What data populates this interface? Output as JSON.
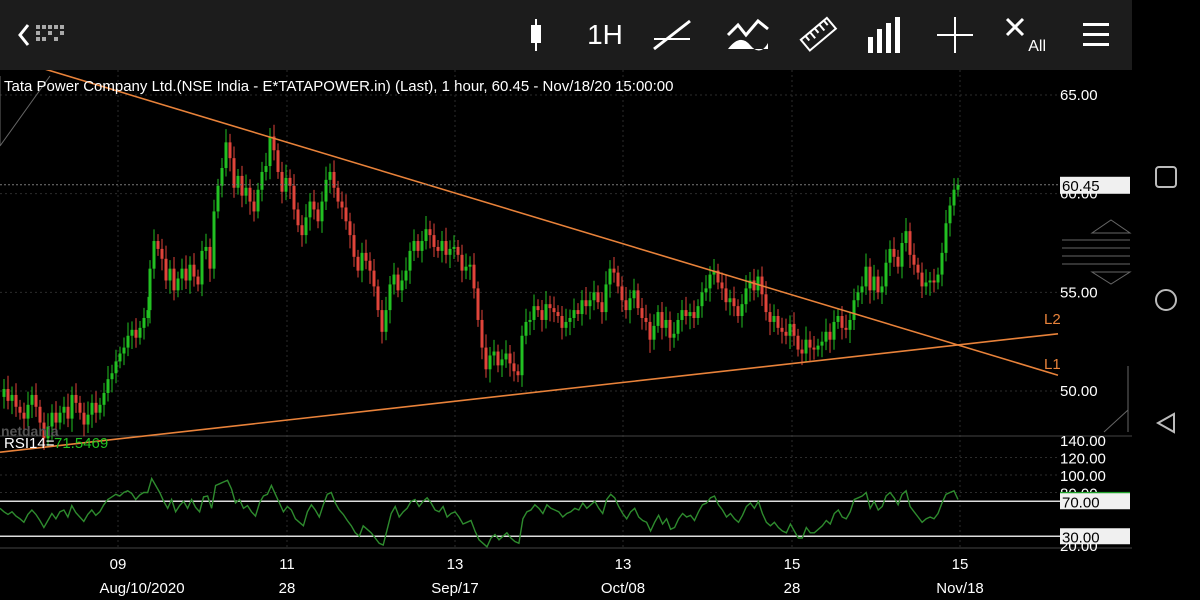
{
  "toolbar": {
    "back_icon": "chevron-left-icon",
    "interval": "1H",
    "clear_label": "All",
    "buttons": [
      "candle-style-icon",
      "interval",
      "trendline-icon",
      "indicator-icon",
      "ruler-icon",
      "volume-bars-icon",
      "crosshair-icon",
      "clear-all-icon",
      "menu-icon"
    ]
  },
  "navbar": [
    "recent-apps-icon",
    "home-icon",
    "back-icon"
  ],
  "chart": {
    "header": "Tata Power Company Ltd.(NSE India - E*TATAPOWER.in) (Last),  1 hour, 60.45 - Nov/18/20 15:00:00",
    "watermark": "netdania",
    "price_ticks": [
      "65.00",
      "60.00",
      "55.00",
      "50.00"
    ],
    "last_price": "60.45",
    "rsi_label": "RSI14=",
    "rsi_value": "71.5469",
    "rsi_ticks": [
      "140.00",
      "120.00",
      "100.00",
      "80.00",
      "70.00",
      "30.00",
      "20.00"
    ],
    "x_labels_top": [
      "09",
      "11",
      "13",
      "13",
      "15",
      "15"
    ],
    "x_labels_bottom": [
      "Aug/10/2020",
      "28",
      "Sep/17",
      "Oct/08",
      "28",
      "Nov/18"
    ],
    "line_labels": [
      "L2",
      "L1"
    ],
    "colors": {
      "up": "#22c022",
      "down": "#e0443a",
      "trend": "#e8823a",
      "rsi": "#2e8b2e",
      "last": "#1fa02a"
    }
  },
  "chart_data": {
    "type": "candlestick",
    "title": "Tata Power Company Ltd.(NSE India - E*TATAPOWER.in) (Last),  1 hour, 60.45 - Nov/18/20 15:00:00",
    "ylim": [
      44,
      67
    ],
    "last": 60.45,
    "close_path": [
      [
        0,
        49.7
      ],
      [
        4,
        50.1
      ],
      [
        8,
        49.5
      ],
      [
        12,
        49.8
      ],
      [
        16,
        49.2
      ],
      [
        20,
        48.9
      ],
      [
        24,
        48.6
      ],
      [
        28,
        49.3
      ],
      [
        32,
        49.8
      ],
      [
        36,
        49.2
      ],
      [
        40,
        48.4
      ],
      [
        44,
        47.6
      ],
      [
        48,
        48.2
      ],
      [
        52,
        48.9
      ],
      [
        56,
        48.4
      ],
      [
        60,
        48.9
      ],
      [
        64,
        49.2
      ],
      [
        68,
        48.6
      ],
      [
        72,
        49.8
      ],
      [
        76,
        49.4
      ],
      [
        80,
        48.9
      ],
      [
        84,
        48.3
      ],
      [
        88,
        48.8
      ],
      [
        92,
        49.4
      ],
      [
        96,
        48.9
      ],
      [
        100,
        49.3
      ],
      [
        104,
        49.9
      ],
      [
        108,
        50.6
      ],
      [
        112,
        50.9
      ],
      [
        116,
        51.5
      ],
      [
        120,
        51.9
      ],
      [
        124,
        52.2
      ],
      [
        128,
        52.8
      ],
      [
        132,
        53.1
      ],
      [
        136,
        52.7
      ],
      [
        140,
        53.2
      ],
      [
        144,
        53.7
      ],
      [
        148,
        54.1
      ],
      [
        150,
        56.2
      ],
      [
        154,
        57.6
      ],
      [
        158,
        57.2
      ],
      [
        162,
        56.7
      ],
      [
        166,
        55.6
      ],
      [
        170,
        56.2
      ],
      [
        174,
        55.1
      ],
      [
        178,
        55.7
      ],
      [
        182,
        56.2
      ],
      [
        186,
        55.6
      ],
      [
        190,
        56.4
      ],
      [
        194,
        55.8
      ],
      [
        198,
        55.4
      ],
      [
        202,
        57.1
      ],
      [
        206,
        57.3
      ],
      [
        210,
        56.2
      ],
      [
        214,
        59.1
      ],
      [
        218,
        60.4
      ],
      [
        222,
        61.3
      ],
      [
        226,
        62.6
      ],
      [
        230,
        61.8
      ],
      [
        234,
        60.3
      ],
      [
        238,
        60.9
      ],
      [
        242,
        59.9
      ],
      [
        246,
        60.3
      ],
      [
        250,
        59.6
      ],
      [
        254,
        59.1
      ],
      [
        258,
        60.2
      ],
      [
        262,
        61.1
      ],
      [
        266,
        61.4
      ],
      [
        270,
        62.9
      ],
      [
        274,
        62.2
      ],
      [
        278,
        61.1
      ],
      [
        282,
        60.1
      ],
      [
        286,
        60.8
      ],
      [
        290,
        60.4
      ],
      [
        294,
        59.2
      ],
      [
        298,
        58.4
      ],
      [
        302,
        57.9
      ],
      [
        306,
        58.8
      ],
      [
        310,
        59.6
      ],
      [
        314,
        59.2
      ],
      [
        318,
        58.6
      ],
      [
        322,
        59.6
      ],
      [
        326,
        60.7
      ],
      [
        330,
        61.1
      ],
      [
        334,
        60.3
      ],
      [
        338,
        59.6
      ],
      [
        342,
        59.3
      ],
      [
        346,
        58.6
      ],
      [
        350,
        57.9
      ],
      [
        354,
        56.8
      ],
      [
        358,
        56.1
      ],
      [
        362,
        57.0
      ],
      [
        366,
        56.6
      ],
      [
        370,
        56.1
      ],
      [
        374,
        55.3
      ],
      [
        378,
        54.1
      ],
      [
        382,
        53.0
      ],
      [
        386,
        54.1
      ],
      [
        390,
        55.4
      ],
      [
        394,
        55.9
      ],
      [
        398,
        55.1
      ],
      [
        402,
        55.6
      ],
      [
        406,
        56.1
      ],
      [
        410,
        57.1
      ],
      [
        414,
        57.6
      ],
      [
        418,
        57.1
      ],
      [
        422,
        57.6
      ],
      [
        426,
        58.2
      ],
      [
        430,
        57.9
      ],
      [
        434,
        57.3
      ],
      [
        438,
        57.1
      ],
      [
        442,
        57.6
      ],
      [
        446,
        56.9
      ],
      [
        450,
        57.2
      ],
      [
        454,
        57.3
      ],
      [
        458,
        56.9
      ],
      [
        462,
        56.1
      ],
      [
        466,
        56.3
      ],
      [
        470,
        56.4
      ],
      [
        474,
        55.2
      ],
      [
        478,
        53.6
      ],
      [
        482,
        52.2
      ],
      [
        486,
        51.1
      ],
      [
        490,
        51.8
      ],
      [
        494,
        52.0
      ],
      [
        498,
        51.3
      ],
      [
        502,
        51.6
      ],
      [
        506,
        51.9
      ],
      [
        510,
        51.4
      ],
      [
        514,
        51.0
      ],
      [
        518,
        50.8
      ],
      [
        522,
        52.8
      ],
      [
        526,
        53.5
      ],
      [
        530,
        53.6
      ],
      [
        534,
        54.3
      ],
      [
        538,
        54.1
      ],
      [
        542,
        53.6
      ],
      [
        546,
        54.4
      ],
      [
        550,
        54.2
      ],
      [
        554,
        54.0
      ],
      [
        558,
        53.8
      ],
      [
        562,
        53.2
      ],
      [
        566,
        53.5
      ],
      [
        570,
        53.7
      ],
      [
        574,
        54.1
      ],
      [
        578,
        53.9
      ],
      [
        582,
        54.6
      ],
      [
        586,
        54.3
      ],
      [
        590,
        54.6
      ],
      [
        594,
        55.0
      ],
      [
        598,
        54.5
      ],
      [
        602,
        54.0
      ],
      [
        606,
        55.4
      ],
      [
        610,
        56.2
      ],
      [
        614,
        56.0
      ],
      [
        618,
        55.3
      ],
      [
        622,
        54.6
      ],
      [
        626,
        54.1
      ],
      [
        630,
        54.7
      ],
      [
        634,
        55.1
      ],
      [
        638,
        54.2
      ],
      [
        642,
        53.7
      ],
      [
        646,
        53.5
      ],
      [
        650,
        52.6
      ],
      [
        654,
        53.3
      ],
      [
        658,
        54.0
      ],
      [
        662,
        53.2
      ],
      [
        666,
        53.6
      ],
      [
        670,
        52.7
      ],
      [
        674,
        52.9
      ],
      [
        678,
        53.6
      ],
      [
        682,
        54.1
      ],
      [
        686,
        53.8
      ],
      [
        690,
        54.0
      ],
      [
        694,
        53.7
      ],
      [
        698,
        54.3
      ],
      [
        702,
        55.0
      ],
      [
        706,
        55.2
      ],
      [
        710,
        55.9
      ],
      [
        714,
        56.1
      ],
      [
        718,
        55.5
      ],
      [
        722,
        55.2
      ],
      [
        726,
        54.5
      ],
      [
        730,
        54.7
      ],
      [
        734,
        54.3
      ],
      [
        738,
        53.8
      ],
      [
        742,
        54.4
      ],
      [
        746,
        55.2
      ],
      [
        750,
        55.6
      ],
      [
        754,
        55.1
      ],
      [
        758,
        55.8
      ],
      [
        762,
        54.9
      ],
      [
        766,
        54.0
      ],
      [
        770,
        53.5
      ],
      [
        774,
        53.8
      ],
      [
        778,
        53.2
      ],
      [
        782,
        53.0
      ],
      [
        786,
        52.8
      ],
      [
        790,
        53.4
      ],
      [
        794,
        52.8
      ],
      [
        798,
        52.1
      ],
      [
        802,
        51.9
      ],
      [
        806,
        52.6
      ],
      [
        810,
        52.2
      ],
      [
        814,
        52.1
      ],
      [
        818,
        52.3
      ],
      [
        822,
        52.5
      ],
      [
        826,
        53.0
      ],
      [
        830,
        52.6
      ],
      [
        834,
        53.5
      ],
      [
        838,
        53.8
      ],
      [
        842,
        53.2
      ],
      [
        846,
        53.1
      ],
      [
        850,
        53.6
      ],
      [
        854,
        54.6
      ],
      [
        858,
        55.0
      ],
      [
        862,
        55.3
      ],
      [
        866,
        56.3
      ],
      [
        870,
        55.1
      ],
      [
        874,
        55.8
      ],
      [
        878,
        55.0
      ],
      [
        882,
        55.3
      ],
      [
        886,
        56.5
      ],
      [
        890,
        57.2
      ],
      [
        894,
        56.8
      ],
      [
        898,
        56.3
      ],
      [
        902,
        57.5
      ],
      [
        906,
        58.1
      ],
      [
        910,
        56.9
      ],
      [
        914,
        56.4
      ],
      [
        918,
        56.0
      ],
      [
        922,
        55.3
      ],
      [
        926,
        55.5
      ],
      [
        930,
        55.6
      ],
      [
        934,
        55.5
      ],
      [
        938,
        55.9
      ],
      [
        942,
        57.0
      ],
      [
        946,
        58.5
      ],
      [
        950,
        59.4
      ],
      [
        954,
        60.2
      ],
      [
        958,
        60.45
      ]
    ],
    "trendlines": [
      {
        "name": "L1",
        "from": [
          0,
          67.0
        ],
        "to": [
          1058,
          50.8
        ]
      },
      {
        "name": "L2",
        "from": [
          0,
          46.9
        ],
        "to": [
          1058,
          52.9
        ]
      }
    ],
    "rsi": {
      "name": "RSI14",
      "value": 71.5469,
      "levels": [
        70,
        30
      ],
      "series": [
        62,
        58,
        55,
        58,
        53,
        50,
        46,
        55,
        60,
        55,
        48,
        40,
        48,
        56,
        50,
        58,
        60,
        52,
        65,
        57,
        52,
        47,
        55,
        60,
        54,
        58,
        66,
        72,
        75,
        78,
        76,
        80,
        82,
        79,
        72,
        77,
        80,
        80,
        96,
        88,
        80,
        70,
        62,
        72,
        58,
        65,
        70,
        62,
        72,
        63,
        58,
        75,
        76,
        62,
        88,
        90,
        92,
        94,
        84,
        68,
        72,
        62,
        65,
        58,
        53,
        68,
        76,
        78,
        88,
        78,
        68,
        58,
        64,
        60,
        50,
        46,
        42,
        58,
        66,
        60,
        52,
        66,
        78,
        80,
        68,
        60,
        55,
        48,
        42,
        34,
        30,
        42,
        38,
        34,
        28,
        22,
        20,
        38,
        56,
        64,
        52,
        58,
        62,
        70,
        72,
        64,
        70,
        74,
        68,
        60,
        58,
        64,
        52,
        56,
        58,
        52,
        44,
        46,
        48,
        36,
        26,
        22,
        18,
        28,
        32,
        26,
        30,
        34,
        28,
        24,
        22,
        50,
        58,
        60,
        66,
        62,
        56,
        66,
        62,
        60,
        58,
        52,
        56,
        58,
        62,
        60,
        68,
        62,
        66,
        70,
        62,
        56,
        72,
        78,
        74,
        64,
        56,
        50,
        58,
        62,
        52,
        48,
        46,
        36,
        46,
        54,
        44,
        50,
        38,
        40,
        50,
        56,
        52,
        54,
        48,
        58,
        66,
        68,
        74,
        76,
        66,
        60,
        52,
        56,
        50,
        46,
        54,
        64,
        68,
        62,
        70,
        56,
        46,
        42,
        46,
        40,
        36,
        34,
        44,
        36,
        28,
        28,
        40,
        34,
        34,
        38,
        42,
        48,
        44,
        56,
        60,
        52,
        50,
        58,
        72,
        74,
        76,
        80,
        62,
        70,
        60,
        64,
        76,
        80,
        74,
        66,
        78,
        82,
        64,
        58,
        52,
        46,
        50,
        52,
        50,
        56,
        68,
        78,
        80,
        82,
        72
      ]
    },
    "rsi_ylim": [
      20,
      140
    ]
  }
}
